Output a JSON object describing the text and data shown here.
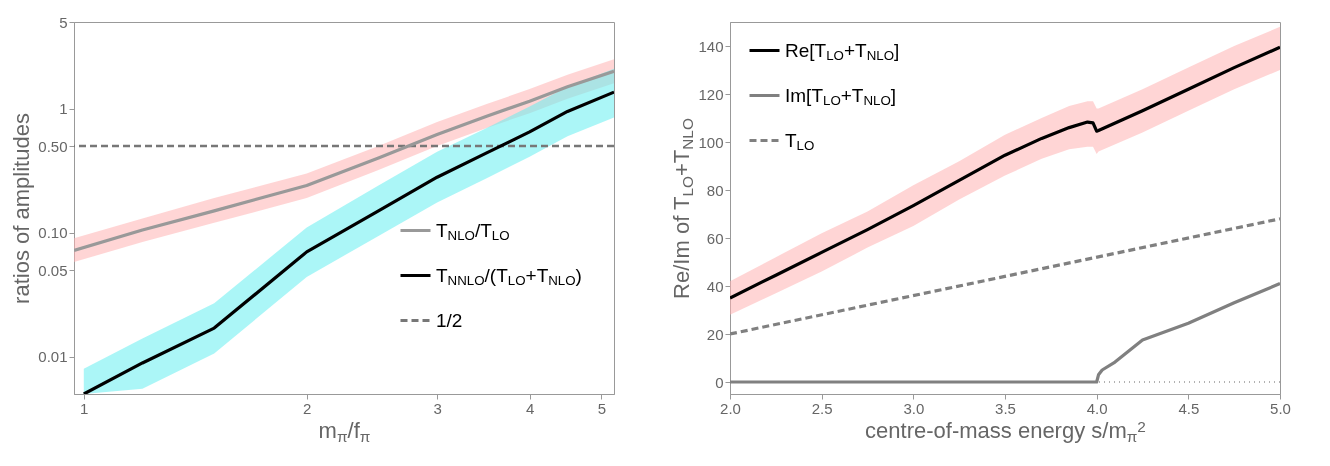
{
  "chart_data": [
    {
      "type": "line",
      "xlabel": "m$_{π}$/f$_{π}$",
      "ylabel": "ratios of amplitudes",
      "log": "xy",
      "xlim": [
        0.97,
        5.2
      ],
      "xticks": [
        1,
        2,
        3,
        4,
        5
      ],
      "ylim": [
        0.005,
        5
      ],
      "yticks": [
        0.01,
        0.05,
        {
          "value": 0.1,
          "label": "0.10"
        },
        {
          "value": 0.5,
          "label": "0.50"
        },
        1,
        5
      ],
      "legend": "bottom right",
      "series": [
        {
          "name": "T$_{NLO}$/T$_{LO}$",
          "color": "#999999",
          "x": [
            0.97,
            1.2,
            1.5,
            2,
            2.5,
            3,
            3.5,
            4,
            4.5,
            5.2
          ],
          "values": [
            0.072,
            0.105,
            0.15,
            0.24,
            0.4,
            0.62,
            0.87,
            1.15,
            1.5,
            2.0
          ],
          "lower": [
            0.058,
            0.084,
            0.12,
            0.19,
            0.32,
            0.5,
            0.7,
            0.92,
            1.2,
            1.6
          ],
          "upper": [
            0.09,
            0.13,
            0.19,
            0.3,
            0.5,
            0.78,
            1.09,
            1.44,
            1.88,
            2.5
          ]
        },
        {
          "name": "T$_{NNLO}$/(T$_{LO}$+T$_{NLO}$)",
          "color": "#000000",
          "x": [
            1.0,
            1.2,
            1.5,
            2,
            2.5,
            3,
            3.5,
            4,
            4.5,
            5.2
          ],
          "values": [
            0.005,
            0.0089,
            0.017,
            0.07,
            0.15,
            0.28,
            0.44,
            0.65,
            0.95,
            1.36
          ],
          "lower": [
            0.005,
            0.0055,
            0.0106,
            0.044,
            0.094,
            0.175,
            0.275,
            0.41,
            0.6,
            0.85
          ],
          "upper": [
            0.008,
            0.014,
            0.027,
            0.11,
            0.24,
            0.45,
            0.7,
            1.04,
            1.5,
            2.1
          ]
        }
      ],
      "ref_lines": [
        {
          "axis": "y",
          "value": 0.5,
          "label": "1/2",
          "color": "#777777",
          "line_style": "dashed"
        }
      ]
    },
    {
      "type": "line",
      "xlabel": "centre-of-mass energy s/m$_{π}$$^{2}$",
      "ylabel": "Re/Im of T$_{LO}$+T$_{NLO}$",
      "xlim": [
        2,
        5
      ],
      "xticks": [
        {
          "value": 2,
          "label": "2.0"
        },
        {
          "value": 2.5,
          "label": "2.5"
        },
        {
          "value": 3,
          "label": "3.0"
        },
        {
          "value": 3.5,
          "label": "3.5"
        },
        {
          "value": 4,
          "label": "4.0"
        },
        {
          "value": 4.5,
          "label": "4.5"
        },
        {
          "value": 5,
          "label": "5.0"
        }
      ],
      "ylim": [
        -5,
        150
      ],
      "yticks": [
        0,
        20,
        40,
        60,
        80,
        100,
        120,
        140
      ],
      "legend": "top left",
      "series": [
        {
          "name": "Re[T$_{LO}$+T$_{NLO}$]",
          "color": "#000000",
          "x": [
            2,
            2.25,
            2.5,
            2.75,
            3,
            3.25,
            3.5,
            3.7,
            3.85,
            3.95,
            3.98,
            4,
            4.01,
            4.25,
            4.5,
            4.75,
            5
          ],
          "values": [
            35,
            44.5,
            54,
            63.5,
            73.5,
            84,
            94.5,
            101.5,
            106,
            108.3,
            108,
            104.5,
            104.8,
            113,
            122,
            131,
            139.5
          ],
          "lower": [
            28,
            37,
            46,
            56,
            65,
            76,
            86,
            93,
            97,
            98,
            98,
            95,
            96,
            104,
            113,
            122,
            130
          ],
          "upper": [
            42,
            52,
            62,
            71,
            82,
            92,
            103,
            110,
            115,
            117,
            117,
            114,
            114,
            122,
            131,
            140,
            148
          ]
        },
        {
          "name": "Im[T$_{LO}$+T$_{NLO}$]",
          "color": "#808080",
          "x": [
            2,
            3,
            4,
            4.01,
            4.03,
            4.1,
            4.25,
            4.5,
            4.75,
            5
          ],
          "values": [
            0,
            0,
            0,
            3,
            5,
            8.3,
            17.5,
            24.5,
            33,
            41
          ]
        },
        {
          "name": "T$_{LO}$",
          "color": "#808080",
          "line_style": "dashed",
          "x": [
            2,
            5
          ],
          "values": [
            20,
            68
          ]
        }
      ],
      "ref_lines": [
        {
          "axis": "y",
          "value": 0,
          "color": "#999999",
          "line_style": "dotted"
        }
      ]
    }
  ]
}
